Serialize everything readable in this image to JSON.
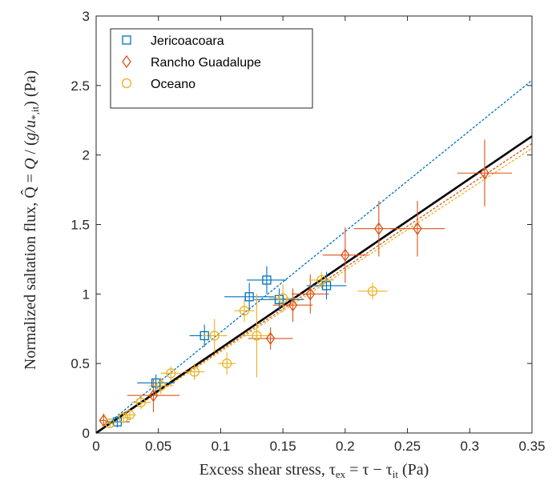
{
  "chart_data": {
    "type": "scatter",
    "xlabel": "Excess shear stress, τ_ex = τ − τ_it (Pa)",
    "ylabel": "Normalized saltation flux, Q̂ = Q / (g/u_*,it) (Pa)",
    "xlim": [
      0,
      0.35
    ],
    "ylim": [
      0,
      3
    ],
    "x_ticks": [
      "0",
      "0.05",
      "0.1",
      "0.15",
      "0.2",
      "0.25",
      "0.3",
      "0.35"
    ],
    "y_ticks": [
      "0",
      "0.5",
      "1",
      "1.5",
      "2",
      "2.5",
      "3"
    ],
    "grid": false,
    "legend_position": "top-left",
    "series": [
      {
        "name": "Jericoacoara",
        "marker": "square",
        "color": "#0072BD",
        "points": [
          {
            "x": 0.017,
            "y": 0.08,
            "xerr": 0.01,
            "yerr": 0.04
          },
          {
            "x": 0.048,
            "y": 0.36,
            "xerr": 0.015,
            "yerr": 0.06
          },
          {
            "x": 0.087,
            "y": 0.7,
            "xerr": 0.012,
            "yerr": 0.08
          },
          {
            "x": 0.123,
            "y": 0.98,
            "xerr": 0.02,
            "yerr": 0.1
          },
          {
            "x": 0.137,
            "y": 1.1,
            "xerr": 0.016,
            "yerr": 0.1
          },
          {
            "x": 0.147,
            "y": 0.96,
            "xerr": 0.02,
            "yerr": 0.08
          },
          {
            "x": 0.185,
            "y": 1.06,
            "xerr": 0.016,
            "yerr": 0.1
          }
        ],
        "fit_line": {
          "slope": 7.25,
          "intercept": 0.0
        }
      },
      {
        "name": "Rancho Guadalupe",
        "marker": "diamond",
        "color": "#D95319",
        "points": [
          {
            "x": 0.006,
            "y": 0.09,
            "xerr": 0.003,
            "yerr": 0.05
          },
          {
            "x": 0.046,
            "y": 0.27,
            "xerr": 0.021,
            "yerr": 0.12
          },
          {
            "x": 0.14,
            "y": 0.68,
            "xerr": 0.018,
            "yerr": 0.08
          },
          {
            "x": 0.158,
            "y": 0.92,
            "xerr": 0.016,
            "yerr": 0.12
          },
          {
            "x": 0.172,
            "y": 1.0,
            "xerr": 0.015,
            "yerr": 0.14
          },
          {
            "x": 0.2,
            "y": 1.28,
            "xerr": 0.018,
            "yerr": 0.2
          },
          {
            "x": 0.227,
            "y": 1.47,
            "xerr": 0.02,
            "yerr": 0.2
          },
          {
            "x": 0.258,
            "y": 1.47,
            "xerr": 0.022,
            "yerr": 0.2
          },
          {
            "x": 0.312,
            "y": 1.87,
            "xerr": 0.022,
            "yerr": 0.24
          }
        ],
        "fit_line": {
          "slope": 5.95,
          "intercept": 0.0
        }
      },
      {
        "name": "Oceano",
        "marker": "circle",
        "color": "#EDB120",
        "points": [
          {
            "x": 0.011,
            "y": 0.07,
            "xerr": 0.004,
            "yerr": 0.03
          },
          {
            "x": 0.022,
            "y": 0.11,
            "xerr": 0.006,
            "yerr": 0.04
          },
          {
            "x": 0.027,
            "y": 0.13,
            "xerr": 0.005,
            "yerr": 0.04
          },
          {
            "x": 0.036,
            "y": 0.22,
            "xerr": 0.008,
            "yerr": 0.05
          },
          {
            "x": 0.052,
            "y": 0.34,
            "xerr": 0.01,
            "yerr": 0.06
          },
          {
            "x": 0.06,
            "y": 0.43,
            "xerr": 0.008,
            "yerr": 0.05
          },
          {
            "x": 0.079,
            "y": 0.44,
            "xerr": 0.008,
            "yerr": 0.06
          },
          {
            "x": 0.095,
            "y": 0.7,
            "xerr": 0.01,
            "yerr": 0.12
          },
          {
            "x": 0.105,
            "y": 0.5,
            "xerr": 0.007,
            "yerr": 0.08
          },
          {
            "x": 0.119,
            "y": 0.88,
            "xerr": 0.008,
            "yerr": 0.08
          },
          {
            "x": 0.129,
            "y": 0.7,
            "xerr": 0.012,
            "yerr": 0.3
          },
          {
            "x": 0.15,
            "y": 0.97,
            "xerr": 0.011,
            "yerr": 0.1
          },
          {
            "x": 0.181,
            "y": 1.1,
            "xerr": 0.01,
            "yerr": 0.06
          },
          {
            "x": 0.222,
            "y": 1.02,
            "xerr": 0.012,
            "yerr": 0.06
          }
        ],
        "fit_line": {
          "slope": 5.85,
          "intercept": 0.0
        }
      }
    ],
    "overall_fit": {
      "color": "#000000",
      "slope": 6.1,
      "intercept": 0.0
    }
  }
}
